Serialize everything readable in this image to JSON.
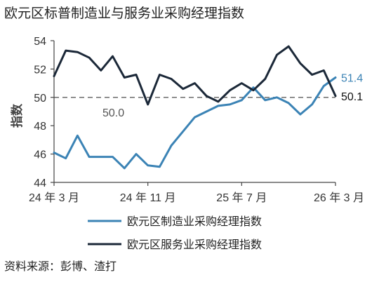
{
  "title": "欧元区标普制造业与服务业采购经理指数",
  "source": "资料来源：彭博、渣打",
  "colors": {
    "manufacturing": "#3b83b5",
    "services": "#1b2838",
    "reference": "#777777",
    "axis": "#444444"
  },
  "chart_data": {
    "type": "line",
    "ylabel": "指数",
    "ylim": [
      44,
      54
    ],
    "yticks": [
      44,
      46,
      48,
      50,
      52,
      54
    ],
    "x": [
      "2024-03",
      "2024-04",
      "2024-05",
      "2024-06",
      "2024-07",
      "2024-08",
      "2024-09",
      "2024-10",
      "2024-11",
      "2024-12",
      "2025-01",
      "2025-02",
      "2025-03",
      "2025-04",
      "2025-05",
      "2025-06",
      "2025-07",
      "2025-08",
      "2025-09",
      "2025-10",
      "2025-11",
      "2025-12",
      "2026-01",
      "2026-02",
      "2026-03"
    ],
    "xtick_labels": [
      {
        "x": "2024-03",
        "label": "24 年 3 月"
      },
      {
        "x": "2024-11",
        "label": "24 年 11 月"
      },
      {
        "x": "2025-07",
        "label": "25 年 7 月"
      },
      {
        "x": "2026-03",
        "label": "26 年 3 月"
      }
    ],
    "series": [
      {
        "name": "欧元区制造业采购经理指数",
        "values": [
          46.1,
          45.7,
          47.3,
          45.8,
          45.8,
          45.8,
          45.0,
          46.0,
          45.2,
          45.1,
          46.6,
          47.6,
          48.6,
          49.0,
          49.4,
          49.5,
          49.8,
          50.7,
          49.8,
          50.0,
          49.6,
          48.8,
          49.5,
          50.8,
          51.4
        ],
        "end_label": "51.4"
      },
      {
        "name": "欧元区服务业采购经理指数",
        "values": [
          51.5,
          53.3,
          53.2,
          52.8,
          51.9,
          52.9,
          51.4,
          51.6,
          49.5,
          51.6,
          51.3,
          50.6,
          51.0,
          50.1,
          49.7,
          50.5,
          51.0,
          50.5,
          51.3,
          53.0,
          53.6,
          52.4,
          51.6,
          51.9,
          50.1
        ],
        "end_label": "50.1"
      }
    ],
    "reference_line": {
      "y": 50,
      "label": "50.0"
    },
    "legend": "bottom"
  }
}
